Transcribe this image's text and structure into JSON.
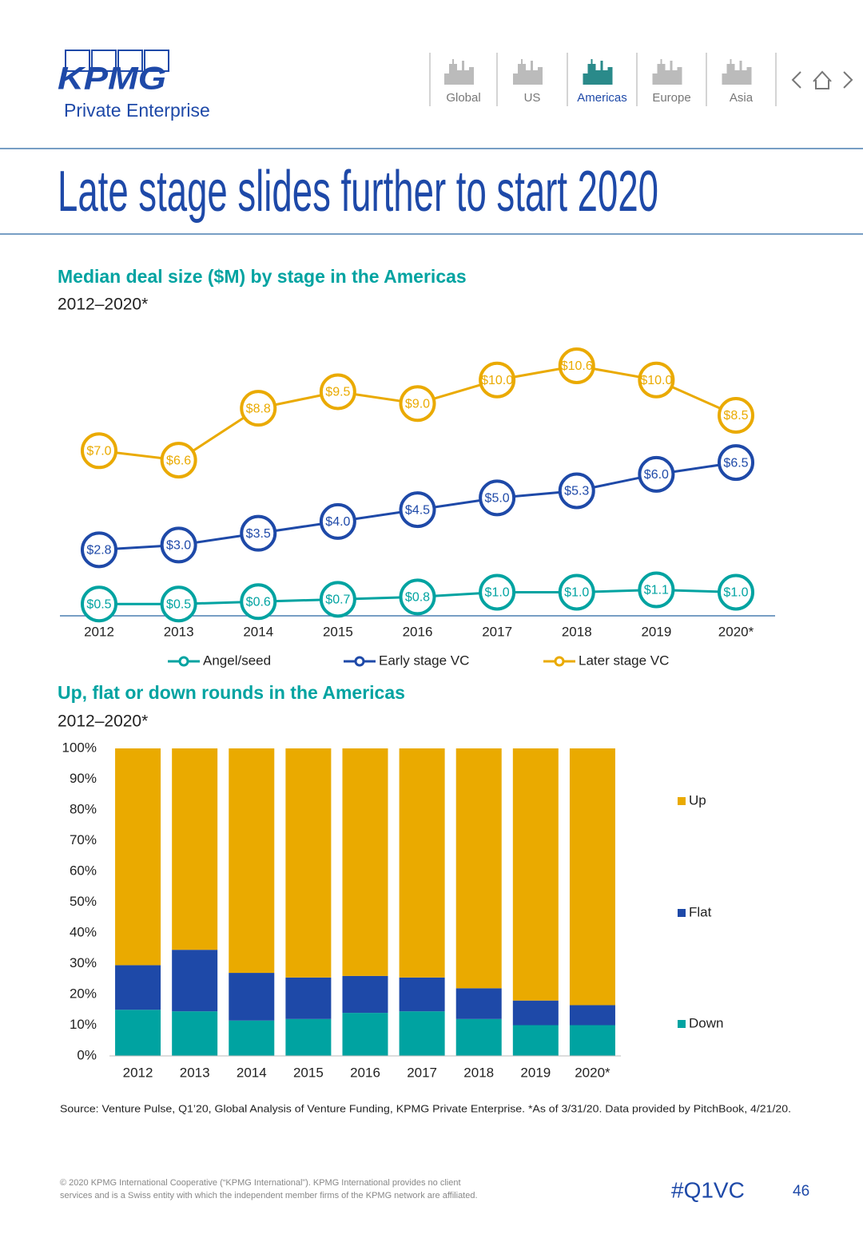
{
  "header": {
    "logo": "KPMG",
    "subtitle": "Private Enterprise",
    "nav": [
      "Global",
      "US",
      "Americas",
      "Europe",
      "Asia"
    ],
    "active": "Americas"
  },
  "title": "Late stage slides further to start 2020",
  "chart_data": [
    {
      "type": "line",
      "title": "Median deal size ($M) by stage in the Americas",
      "subtitle": "2012–2020*",
      "categories": [
        "2012",
        "2013",
        "2014",
        "2015",
        "2016",
        "2017",
        "2018",
        "2019",
        "2020*"
      ],
      "series": [
        {
          "name": "Angel/seed",
          "color": "#00a3a1",
          "values": [
            0.5,
            0.5,
            0.6,
            0.7,
            0.8,
            1.0,
            1.0,
            1.1,
            1.0
          ],
          "value_labels": [
            "$0.5",
            "$0.5",
            "$0.6",
            "$0.7",
            "$0.8",
            "$1.0",
            "$1.0",
            "$1.1",
            "$1.0"
          ]
        },
        {
          "name": "Early stage VC",
          "color": "#1e49a8",
          "values": [
            2.8,
            3.0,
            3.5,
            4.0,
            4.5,
            5.0,
            5.3,
            6.0,
            6.5
          ],
          "value_labels": [
            "$2.8",
            "$3.0",
            "$3.5",
            "$4.0",
            "$4.5",
            "$5.0",
            "$5.3",
            "$6.0",
            "$6.5"
          ]
        },
        {
          "name": "Later stage VC",
          "color": "#eaaa00",
          "values": [
            7.0,
            6.6,
            8.8,
            9.5,
            9.0,
            10.0,
            10.6,
            10.0,
            8.5
          ],
          "value_labels": [
            "$7.0",
            "$6.6",
            "$8.8",
            "$9.5",
            "$9.0",
            "$10.0",
            "$10.6",
            "$10.0",
            "$8.5"
          ]
        }
      ],
      "legend": "bottom"
    },
    {
      "type": "stacked-bar",
      "title": "Up, flat or down rounds in the Americas",
      "subtitle": "2012–2020*",
      "categories": [
        "2012",
        "2013",
        "2014",
        "2015",
        "2016",
        "2017",
        "2018",
        "2019",
        "2020*"
      ],
      "series": [
        {
          "name": "Down",
          "color": "#00a3a1",
          "values": [
            15,
            14.5,
            11.5,
            12,
            14,
            14.5,
            12,
            10,
            10
          ]
        },
        {
          "name": "Flat",
          "color": "#1e49a8",
          "values": [
            14.5,
            20,
            15.5,
            13.5,
            12,
            11,
            10,
            8,
            6.5
          ]
        },
        {
          "name": "Up",
          "color": "#eaaa00",
          "values": [
            70.5,
            65.5,
            73,
            74.5,
            74,
            74.5,
            78,
            82,
            83.5
          ]
        }
      ],
      "ylim": [
        0,
        100
      ],
      "yticks": [
        {
          "value": 0,
          "label": "0%"
        },
        {
          "value": 10,
          "label": "10%"
        },
        {
          "value": 20,
          "label": "20%"
        },
        {
          "value": 30,
          "label": "30%"
        },
        {
          "value": 40,
          "label": "40%"
        },
        {
          "value": 50,
          "label": "50%"
        },
        {
          "value": 60,
          "label": "60%"
        },
        {
          "value": 70,
          "label": "70%"
        },
        {
          "value": 80,
          "label": "80%"
        },
        {
          "value": 90,
          "label": "90%"
        },
        {
          "value": 100,
          "label": "100%"
        }
      ],
      "grid": false,
      "legend": "right"
    }
  ],
  "source": "Source: Venture Pulse, Q1’20, Global Analysis of Venture Funding, KPMG Private Enterprise. *As of 3/31/20. Data provided by PitchBook, 4/21/20.",
  "footer": {
    "copyright": [
      "© 2020 KPMG International Cooperative (“KPMG International”). KPMG International provides no client",
      "services and is a Swiss entity with which the independent member firms of the KPMG network are affiliated."
    ],
    "hashtag": "#Q1VC",
    "page": "46"
  }
}
